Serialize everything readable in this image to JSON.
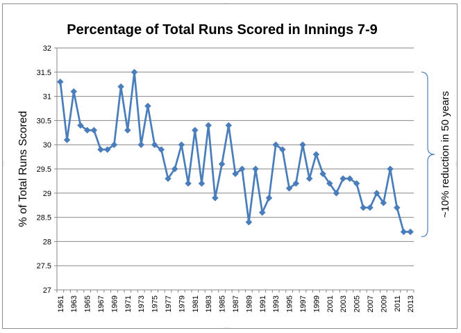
{
  "chart_data": {
    "type": "line",
    "title": "Percentage of Total Runs Scored in Innings 7-9",
    "xlabel": "",
    "ylabel": "% of Total Runs Scored",
    "ylim": [
      27,
      32
    ],
    "y_ticks": [
      "27",
      "27.5",
      "28",
      "28.5",
      "29",
      "29.5",
      "30",
      "30.5",
      "31",
      "31.5",
      "32"
    ],
    "x_tick_labels": [
      "1961",
      "1963",
      "1965",
      "1967",
      "1969",
      "1971",
      "1973",
      "1975",
      "1977",
      "1979",
      "1981",
      "1983",
      "1985",
      "1987",
      "1989",
      "1991",
      "1993",
      "1995",
      "1997",
      "1999",
      "2001",
      "2003",
      "2005",
      "2007",
      "2009",
      "2011",
      "2013"
    ],
    "grid": "horizontal",
    "legend": "none",
    "series_color": "#4a7ebb",
    "x": [
      1961,
      1962,
      1963,
      1964,
      1965,
      1966,
      1967,
      1968,
      1969,
      1970,
      1971,
      1972,
      1973,
      1974,
      1975,
      1976,
      1977,
      1978,
      1979,
      1980,
      1981,
      1982,
      1983,
      1984,
      1985,
      1986,
      1987,
      1988,
      1989,
      1990,
      1991,
      1992,
      1993,
      1994,
      1995,
      1996,
      1997,
      1998,
      1999,
      2000,
      2001,
      2002,
      2003,
      2004,
      2005,
      2006,
      2007,
      2008,
      2009,
      2010,
      2011,
      2012,
      2013
    ],
    "series": [
      {
        "values": [
          31.3,
          30.1,
          31.1,
          30.4,
          30.3,
          30.3,
          29.9,
          29.9,
          30.0,
          31.2,
          30.3,
          31.5,
          30.0,
          30.8,
          30.0,
          29.9,
          29.3,
          29.5,
          30.0,
          29.2,
          30.3,
          29.2,
          30.4,
          28.9,
          29.6,
          30.4,
          29.4,
          29.5,
          28.4,
          29.5,
          28.6,
          28.9,
          30.0,
          29.9,
          29.1,
          29.2,
          30.0,
          29.3,
          29.8,
          29.4,
          29.2,
          29.0,
          29.3,
          29.3,
          29.2,
          28.7,
          28.7,
          29.0,
          28.8,
          29.5,
          28.7,
          28.2,
          28.2
        ]
      }
    ],
    "annotation": {
      "text": "~10% reduction in 50 years",
      "range": [
        28.1,
        31.5
      ]
    }
  }
}
